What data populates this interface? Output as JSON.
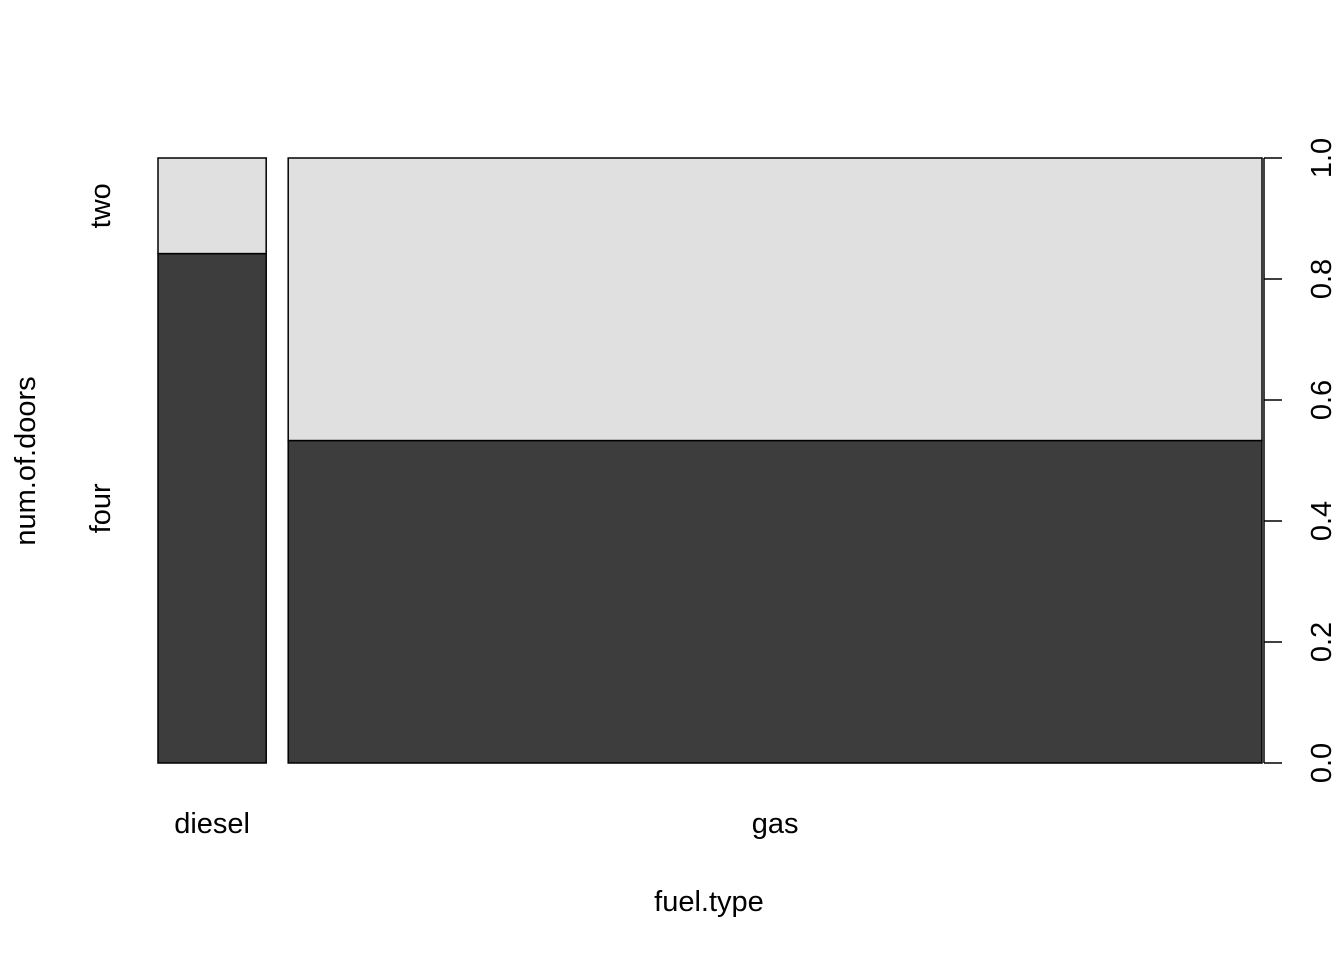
{
  "chart_data": {
    "type": "spineplot",
    "xlabel": "fuel.type",
    "ylabel": "num.of.doors",
    "categories": [
      "diesel",
      "gas"
    ],
    "category_widths": [
      0.1,
      0.9
    ],
    "levels": [
      "four",
      "two"
    ],
    "series": [
      {
        "name": "four",
        "values": [
          0.842,
          0.533
        ]
      },
      {
        "name": "two",
        "values": [
          0.158,
          0.467
        ]
      }
    ],
    "ylim": [
      0,
      1
    ],
    "y_ticks": [
      "0.0",
      "0.2",
      "0.4",
      "0.6",
      "0.8",
      "1.0"
    ],
    "colors": {
      "four": "#3d3d3d",
      "two": "#e0e0e0",
      "border": "#000000"
    }
  }
}
